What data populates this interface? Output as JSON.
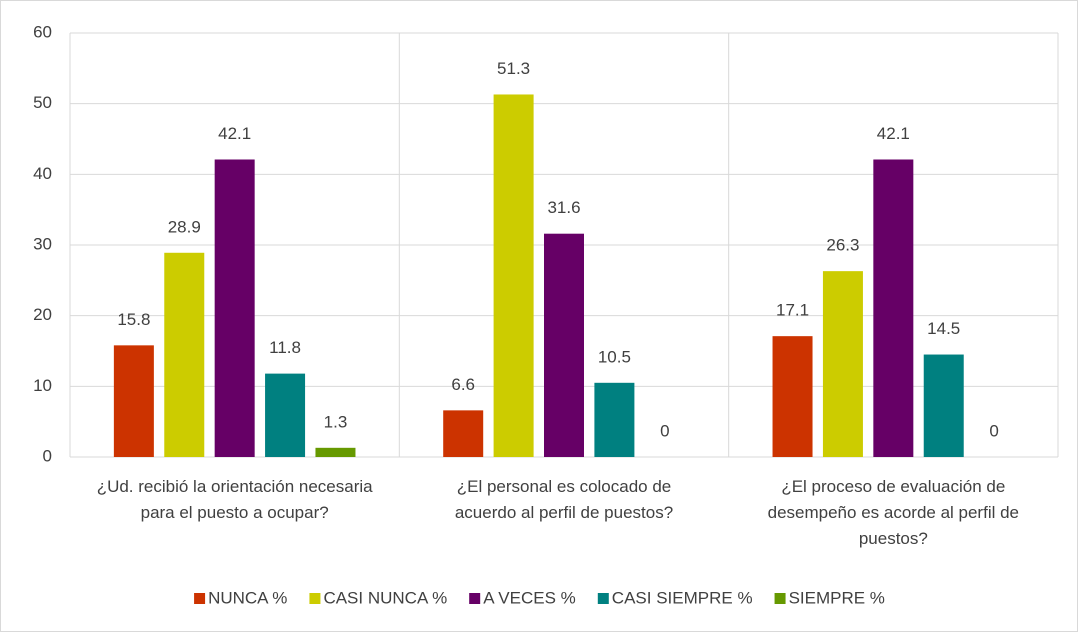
{
  "chart_data": {
    "type": "bar",
    "categories": [
      "¿Ud. recibió la orientación necesaria para el puesto a ocupar?",
      "¿El personal es colocado de acuerdo al perfil de puestos?",
      "¿El proceso de evaluación de desempeño es acorde al perfil de puestos?"
    ],
    "series": [
      {
        "name": "NUNCA %",
        "color": "#cc3300",
        "values": [
          15.8,
          6.6,
          17.1
        ]
      },
      {
        "name": "CASI NUNCA %",
        "color": "#cccc00",
        "values": [
          28.9,
          51.3,
          26.3
        ]
      },
      {
        "name": "A VECES %",
        "color": "#660066",
        "values": [
          42.1,
          31.6,
          42.1
        ]
      },
      {
        "name": "CASI SIEMPRE %",
        "color": "#008080",
        "values": [
          11.8,
          10.5,
          14.5
        ]
      },
      {
        "name": "SIEMPRE %",
        "color": "#669900",
        "values": [
          1.3,
          0,
          0
        ]
      }
    ],
    "ylim": [
      0,
      60
    ],
    "yticks": [
      0,
      10,
      20,
      30,
      40,
      50,
      60
    ],
    "grid": true,
    "legend": "bottom"
  }
}
